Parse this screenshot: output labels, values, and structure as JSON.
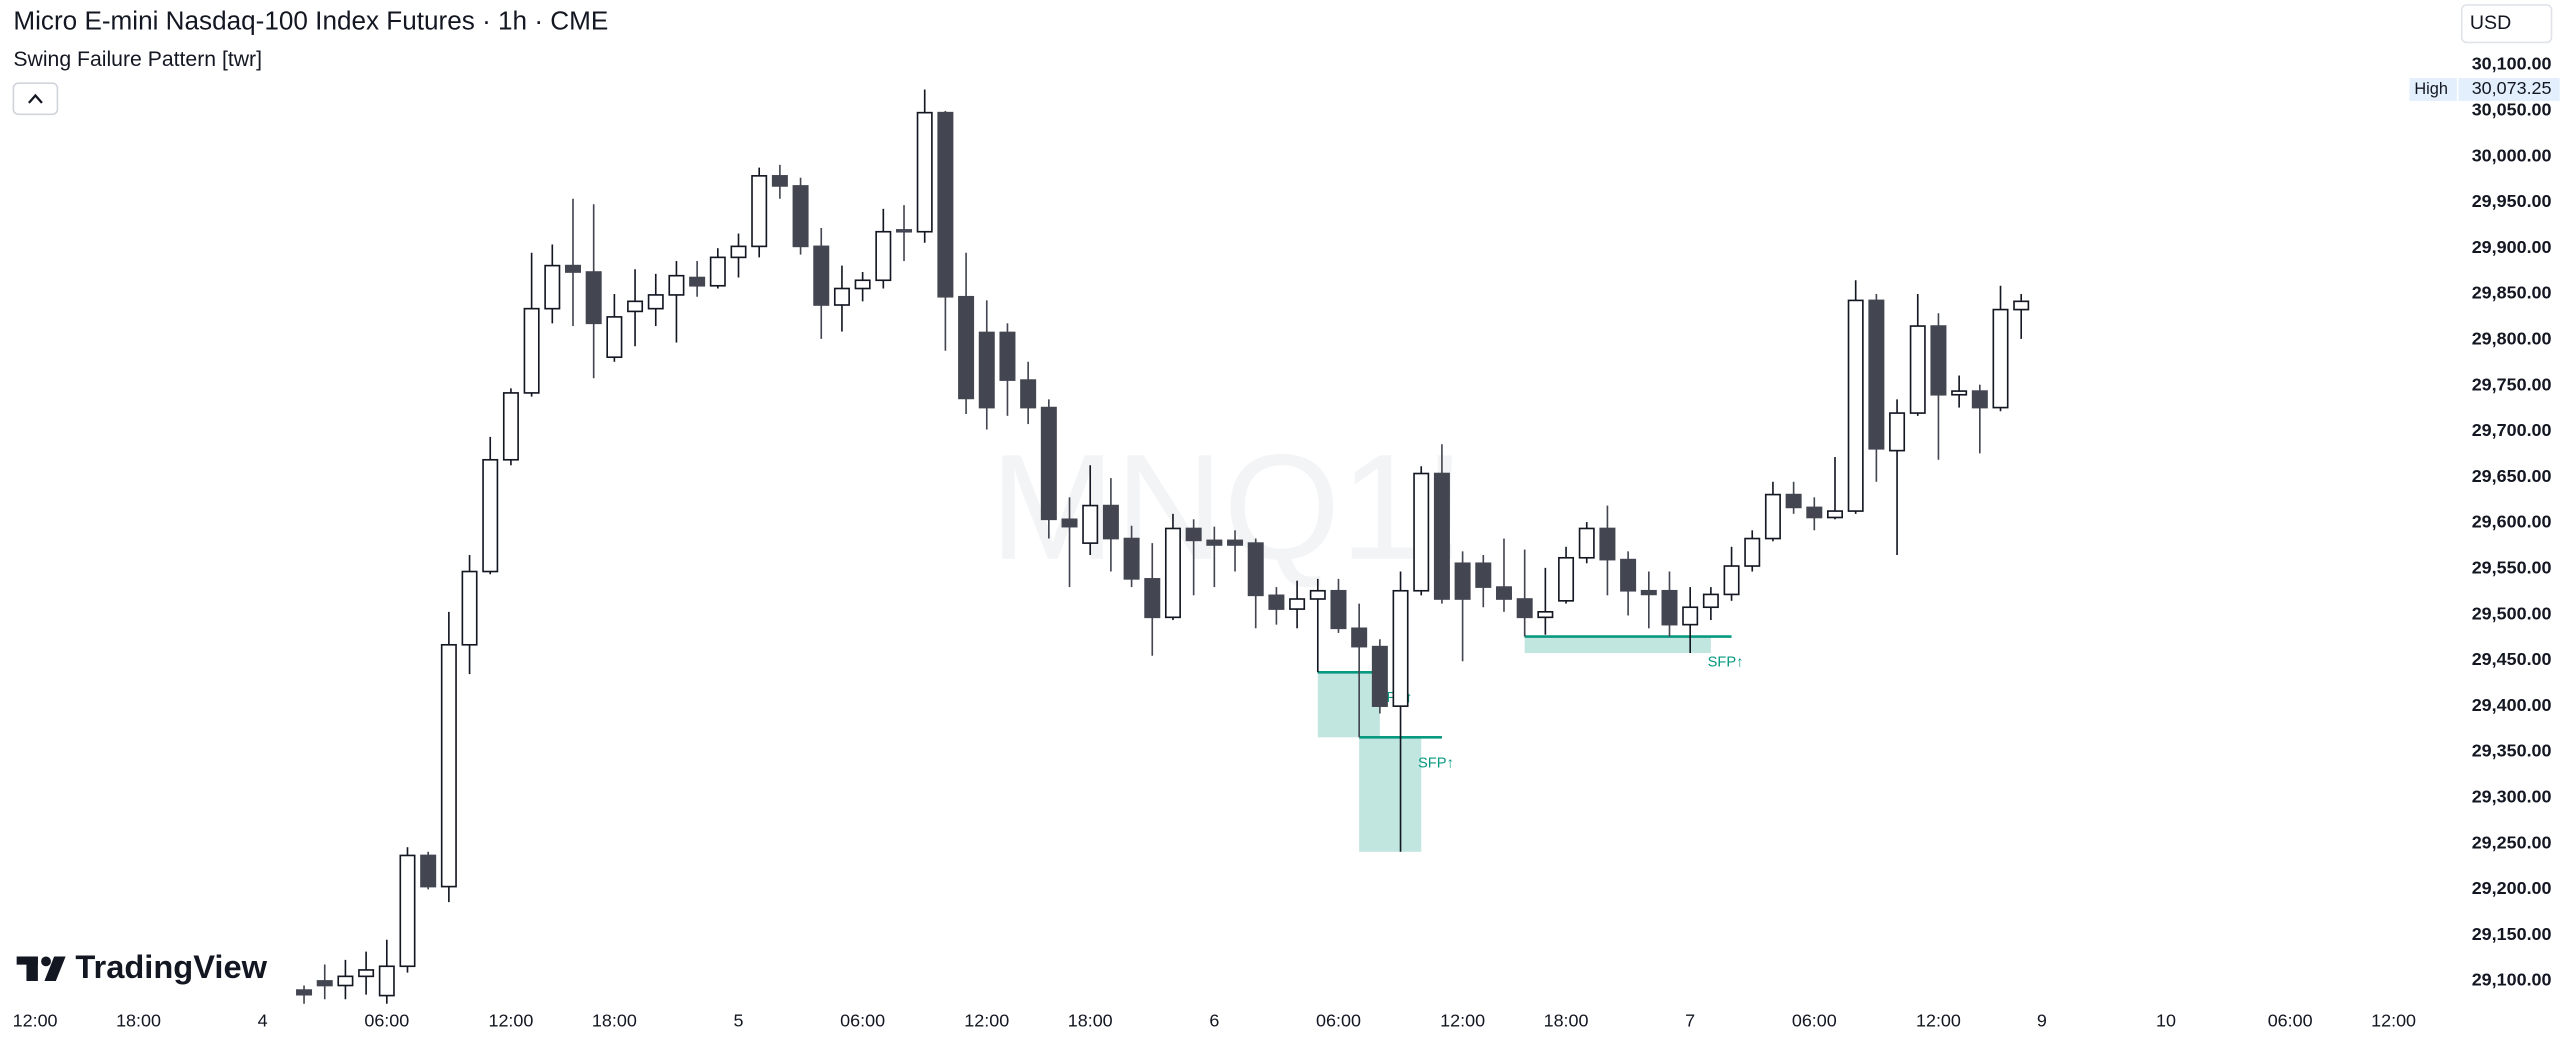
{
  "chart_data": {
    "type": "candlestick",
    "title": "Micro E-mini Nasdaq-100 Index Futures · 1h · CME",
    "subtitle": "Swing Failure Pattern [twr]",
    "watermark": "MNQ1!",
    "currency": "USD",
    "logo": "TradingView",
    "categories": [
      "12:00",
      null,
      null,
      null,
      null,
      "18:00",
      null,
      null,
      null,
      null,
      null,
      "4",
      null,
      null,
      null,
      null,
      null,
      "06:00",
      null,
      null,
      null,
      null,
      null,
      "12:00",
      null,
      null,
      null,
      null,
      "18:00",
      null,
      null,
      null,
      null,
      null,
      "5",
      null,
      null,
      null,
      null,
      null,
      "06:00",
      null,
      null,
      null,
      null,
      null,
      "12:00",
      null,
      null,
      null,
      null,
      "18:00",
      null,
      null,
      null,
      null,
      null,
      "6",
      null,
      null,
      null,
      null,
      null,
      "06:00",
      null,
      null,
      null,
      null,
      null,
      "12:00",
      null,
      null,
      null,
      null,
      "18:00",
      null,
      null,
      null,
      null,
      null,
      "7",
      null,
      null,
      null,
      null,
      null,
      "06:00",
      null,
      null,
      null,
      null,
      null,
      "12:00",
      null,
      null,
      null,
      null,
      "9",
      null,
      null,
      null,
      null,
      null,
      "10",
      null,
      null,
      null,
      null,
      null,
      "06:00",
      null,
      null,
      null,
      null,
      "12:00",
      null,
      null,
      null
    ],
    "open": [
      null,
      null,
      null,
      null,
      null,
      null,
      null,
      null,
      null,
      null,
      null,
      null,
      null,
      29090,
      29100,
      29095,
      29105,
      29084,
      29116,
      29237,
      29203,
      29467,
      29547,
      29669,
      29742,
      29834,
      29881,
      29874,
      29781,
      29831,
      29834,
      29849,
      29868,
      29859,
      29890,
      29902,
      29979,
      29968,
      29902,
      29838,
      29856,
      29865,
      29920,
      29918,
      30048,
      29847,
      29808,
      29808,
      29756,
      29726,
      29604,
      29578,
      29619,
      29583,
      29539,
      29497,
      29594,
      29581,
      29581,
      29578,
      29521,
      29506,
      29517,
      29526,
      29485,
      29465,
      29400,
      29526,
      29654,
      29556,
      29556,
      29530,
      29517,
      29497,
      29515,
      29562,
      29594,
      29560,
      29526,
      29526,
      29489,
      29508,
      29522,
      29553,
      29583,
      29631,
      29617,
      29606,
      29613,
      29843,
      29679,
      29720,
      29815,
      29740,
      29744,
      29726,
      29833,
      null,
      null,
      null,
      null,
      null,
      null,
      null,
      null,
      null,
      null,
      null,
      null,
      null,
      null,
      null,
      null,
      null,
      null,
      null,
      null,
      null
    ],
    "high": [
      null,
      null,
      null,
      null,
      null,
      null,
      null,
      null,
      null,
      null,
      null,
      null,
      null,
      29095,
      29118,
      29123,
      29132,
      29145,
      29246,
      29241,
      29503,
      29565,
      29694,
      29747,
      29895,
      29904,
      29954,
      29948,
      29850,
      29877,
      29872,
      29886,
      29886,
      29900,
      29916,
      29988,
      29991,
      29977,
      29922,
      29881,
      29874,
      29943,
      29947,
      30073.25,
      30050,
      29895,
      29843,
      29818,
      29776,
      29735,
      29628,
      29663,
      29649,
      29597,
      29578,
      29610,
      29604,
      29596,
      29592,
      29583,
      29530,
      29537,
      29539,
      29539,
      29512,
      29473,
      29547,
      29662,
      29686,
      29569,
      29565,
      29583,
      29571,
      29551,
      29574,
      29601,
      29619,
      29569,
      29547,
      29547,
      29530,
      29530,
      29574,
      29592,
      29645,
      29645,
      29628,
      29672,
      29865,
      29850,
      29735,
      29850,
      29829,
      29761,
      29751,
      29859,
      29850,
      null,
      null,
      null,
      null,
      null,
      null,
      null,
      null,
      null,
      null,
      null,
      null,
      null,
      null,
      null,
      null,
      null,
      null,
      null,
      null,
      null
    ],
    "low": [
      null,
      null,
      null,
      null,
      null,
      null,
      null,
      null,
      null,
      null,
      null,
      null,
      null,
      29075,
      29080,
      29080,
      29085,
      29075,
      29109,
      29200,
      29186,
      29435,
      29544,
      29663,
      29738,
      29818,
      29815,
      29758,
      29776,
      29793,
      29815,
      29797,
      29847,
      29856,
      29868,
      29890,
      29954,
      29893,
      29801,
      29809,
      29842,
      29856,
      29886,
      29906,
      29788,
      29719,
      29702,
      29717,
      29708,
      29583,
      29530,
      29565,
      29547,
      29530,
      29455,
      29494,
      29521,
      29530,
      29547,
      29485,
      29489,
      29485,
      29437,
      29480,
      29366,
      29392,
      29241,
      29521,
      29512,
      29449,
      29508,
      29503,
      29476,
      29478,
      29512,
      29556,
      29521,
      29499,
      29485,
      29476,
      29458,
      29494,
      29515,
      29547,
      29580,
      29610,
      29592,
      29604,
      29610,
      29645,
      29565,
      29717,
      29669,
      29726,
      29676,
      29722,
      29801,
      null,
      null,
      null,
      null,
      null,
      null,
      null,
      null,
      null,
      null,
      null,
      null,
      null,
      null,
      null,
      null,
      null,
      null,
      null,
      null,
      null
    ],
    "close": [
      null,
      null,
      null,
      null,
      null,
      null,
      null,
      null,
      null,
      null,
      null,
      null,
      null,
      29085,
      29095,
      29105,
      29112,
      29116,
      29237,
      29203,
      29467,
      29547,
      29669,
      29742,
      29834,
      29881,
      29874,
      29818,
      29825,
      29842,
      29849,
      29870,
      29859,
      29890,
      29902,
      29979,
      29968,
      29902,
      29838,
      29856,
      29865,
      29918,
      29918,
      30048,
      29847,
      29736,
      29726,
      29756,
      29726,
      29604,
      29596,
      29619,
      29583,
      29539,
      29497,
      29594,
      29581,
      29576,
      29576,
      29521,
      29506,
      29517,
      29526,
      29485,
      29465,
      29400,
      29526,
      29654,
      29517,
      29517,
      29530,
      29517,
      29497,
      29503,
      29562,
      29594,
      29560,
      29526,
      29522,
      29489,
      29508,
      29522,
      29553,
      29583,
      29631,
      29617,
      29606,
      29613,
      29843,
      29681,
      29720,
      29815,
      29740,
      29744,
      29726,
      29833,
      29842,
      null,
      null,
      null,
      null,
      null,
      null,
      null,
      null,
      null,
      null,
      null,
      null,
      null,
      null,
      null,
      null,
      null,
      null,
      null,
      null,
      null
    ],
    "up_color": "#ffffff",
    "down_color": "#434651",
    "border_color": "#131722",
    "zone_color": "#089981",
    "zones": [
      {
        "label": "SFP↑",
        "level": 29437,
        "extreme": 29366
      },
      {
        "label": "SFP↑",
        "level": 29366,
        "extreme": 29241
      },
      {
        "label": "SFP↑",
        "level": 29476,
        "extreme": 29458
      }
    ],
    "high_marker": {
      "label": "High",
      "value": 30073.25,
      "value_label": "30,073.25"
    },
    "ylim": [
      29075,
      30171
    ],
    "yticks": [
      {
        "value": 29100,
        "label": "29,100.00"
      },
      {
        "value": 29150,
        "label": "29,150.00"
      },
      {
        "value": 29200,
        "label": "29,200.00"
      },
      {
        "value": 29250,
        "label": "29,250.00"
      },
      {
        "value": 29300,
        "label": "29,300.00"
      },
      {
        "value": 29350,
        "label": "29,350.00"
      },
      {
        "value": 29400,
        "label": "29,400.00"
      },
      {
        "value": 29450,
        "label": "29,450.00"
      },
      {
        "value": 29500,
        "label": "29,500.00"
      },
      {
        "value": 29550,
        "label": "29,550.00"
      },
      {
        "value": 29600,
        "label": "29,600.00"
      },
      {
        "value": 29650,
        "label": "29,650.00"
      },
      {
        "value": 29700,
        "label": "29,700.00"
      },
      {
        "value": 29750,
        "label": "29,750.00"
      },
      {
        "value": 29800,
        "label": "29,800.00"
      },
      {
        "value": 29850,
        "label": "29,850.00"
      },
      {
        "value": 29900,
        "label": "29,900.00"
      },
      {
        "value": 29950,
        "label": "29,950.00"
      },
      {
        "value": 30000,
        "label": "30,000.00"
      },
      {
        "value": 30050,
        "label": "30,050.00"
      },
      {
        "value": 30100,
        "label": "30,100.00"
      }
    ],
    "grid": false
  }
}
